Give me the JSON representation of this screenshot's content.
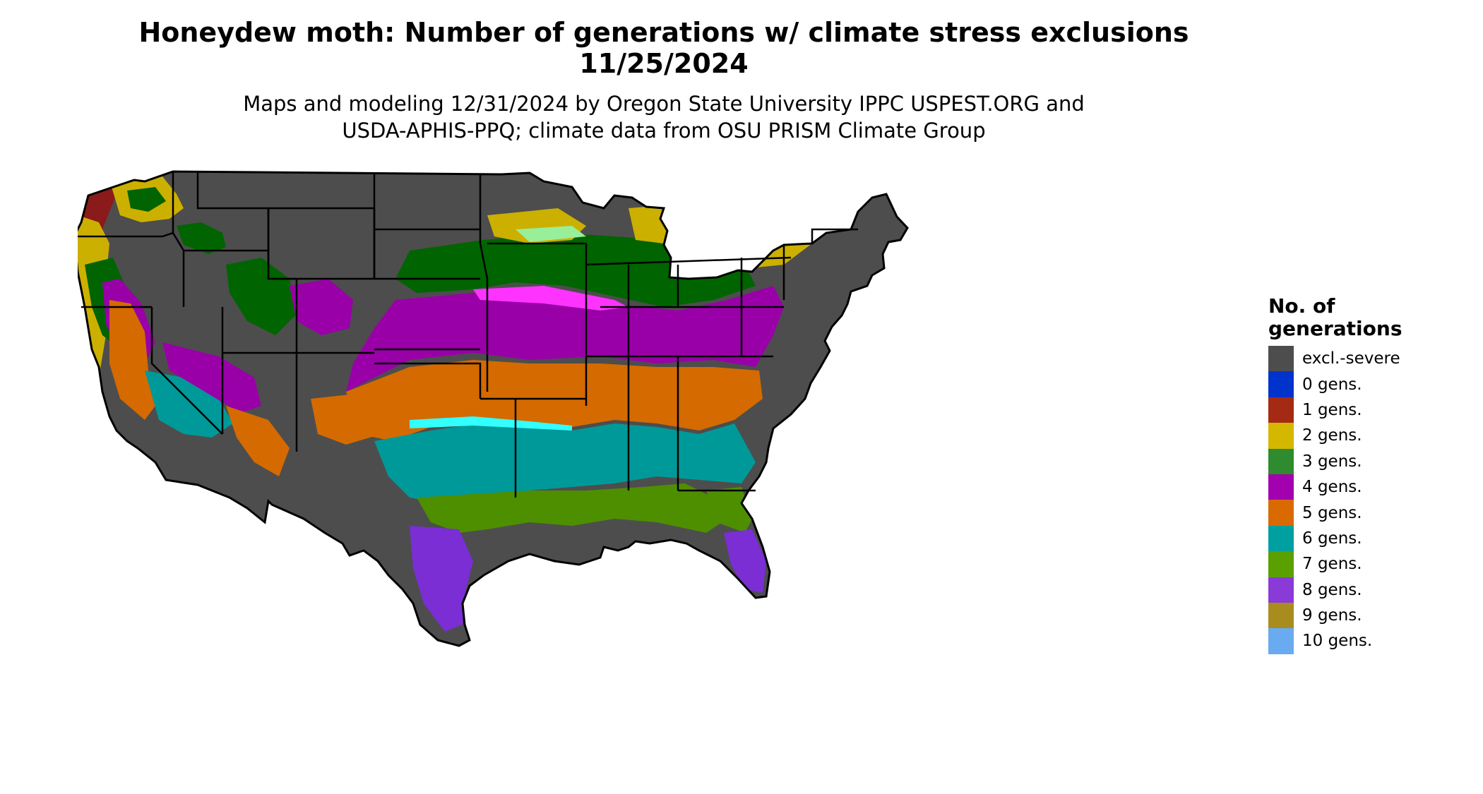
{
  "title": {
    "line1": "Honeydew moth: Number of generations w/ climate stress exclusions",
    "line2": "11/25/2024"
  },
  "subtitle": {
    "line1": "Maps and modeling 12/31/2024 by Oregon State University IPPC USPEST.ORG and",
    "line2": "USDA-APHIS-PPQ; climate data from OSU PRISM Climate Group"
  },
  "legend": {
    "title_line1": "No. of",
    "title_line2": "generations",
    "items": [
      {
        "label": "excl.-severe",
        "color": "#4d4d4d"
      },
      {
        "label": "0 gens.",
        "color": "#0033cc"
      },
      {
        "label": "1 gens.",
        "color": "#a52a13"
      },
      {
        "label": "2 gens.",
        "color": "#d4b800"
      },
      {
        "label": "3 gens.",
        "color": "#2e8b2e"
      },
      {
        "label": "4 gens.",
        "color": "#a300b0"
      },
      {
        "label": "5 gens.",
        "color": "#d96a00"
      },
      {
        "label": "6 gens.",
        "color": "#00a0a0"
      },
      {
        "label": "7 gens.",
        "color": "#5aa000"
      },
      {
        "label": "8 gens.",
        "color": "#8a3ad6"
      },
      {
        "label": "9 gens.",
        "color": "#a88c1e"
      },
      {
        "label": "10 gens.",
        "color": "#6aaaf0"
      }
    ]
  },
  "map_colors": {
    "excluded": "#4d4d4d",
    "gen1": "#8b1a1a",
    "gen2": "#ccb000",
    "gen3": "#006400",
    "gen4": "#9900a8",
    "gen5": "#d46a00",
    "gen6": "#009999",
    "gen7": "#4e8f00",
    "gen8": "#7a2ed4",
    "accent_light_green": "#99ee99",
    "accent_magenta": "#ff33ff",
    "accent_cyan": "#33ffff",
    "state_lines": "#000000"
  }
}
